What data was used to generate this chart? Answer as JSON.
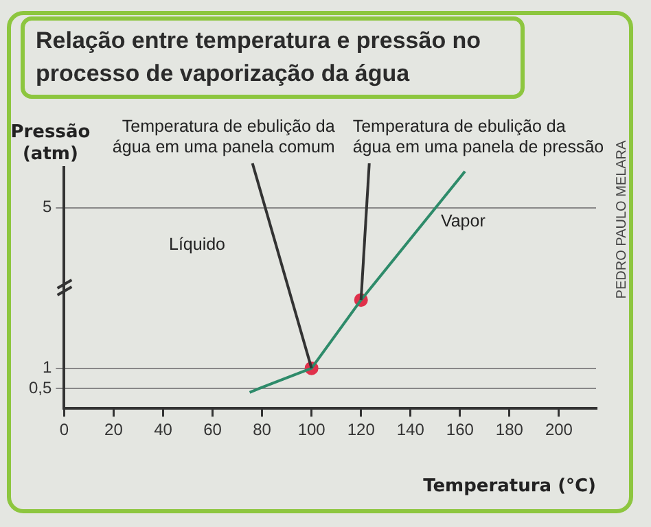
{
  "chart_data": {
    "type": "line",
    "title": "Relação entre temperatura e pressão no processo de vaporização da água",
    "xlabel": "Temperatura (°C)",
    "ylabel": "Pressão (atm)",
    "x": [
      75,
      79,
      100,
      120,
      162
    ],
    "marker": "none",
    "series": [
      {
        "color": "#2e8b6a",
        "values": [
          0.4,
          0.5,
          1,
          2.7,
          5.9
        ]
      },
      {
        "type": "scatter",
        "color": "#e0314b",
        "x": [
          100,
          120
        ],
        "values": [
          1,
          2.7
        ],
        "marker": "circle"
      }
    ],
    "xlim": [
      0,
      215
    ],
    "xticks": [
      0,
      20,
      40,
      60,
      80,
      100,
      120,
      140,
      160,
      180,
      200
    ],
    "ylim": [
      0,
      6
    ],
    "yticks": [
      {
        "value": 0.5,
        "label": "0,5"
      },
      1,
      5
    ],
    "grid": "y",
    "legend": false,
    "annotations": [
      {
        "text": "Temperatura de ebulição da água em uma panela comum",
        "x": 100,
        "y": 1
      },
      {
        "text": "Temperatura de ebulição da água em uma panela de pressão",
        "x": 120,
        "y": 2.7
      },
      "Líquido",
      "Vapor",
      "PEDRO PAULO MELARA"
    ]
  }
}
